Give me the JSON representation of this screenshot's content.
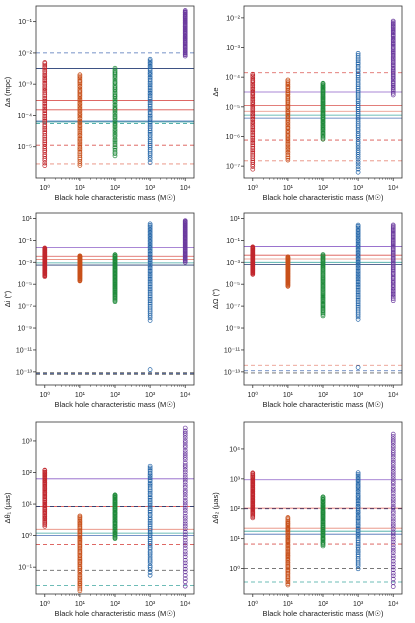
{
  "figure": {
    "panel_count": 6
  },
  "colors": {
    "m1": "#c1272d",
    "m10": "#c8511b",
    "m100": "#1f8a3a",
    "m1000": "#2566a8",
    "m10000": "#6b3a9e",
    "line_purple": "#8c5fc7",
    "line_red": "#d9534f",
    "line_salmon": "#e88a7a",
    "line_teal": "#3fa7a0",
    "line_blue": "#4a6fb5",
    "line_darkblue": "#233a72",
    "line_gray": "#666666"
  },
  "chart_data": [
    {
      "type": "scatter",
      "id": "delta-a",
      "ylabel": "Δa (mpc)",
      "xlabel": "Black hole characteristic mass (M☉)",
      "x_ticks": [
        "10⁰",
        "10¹",
        "10²",
        "10³",
        "10⁴"
      ],
      "y_ticks": [
        [
          "10⁻¹",
          -1
        ],
        [
          "10⁻²",
          -2
        ],
        [
          "10⁻³",
          -3
        ],
        [
          "10⁻⁴",
          -4
        ],
        [
          "10⁻⁵",
          -5
        ]
      ],
      "ylog_range": [
        -6.0,
        -0.5
      ],
      "xlog_range": [
        -0.25,
        4.25
      ],
      "columns": [
        {
          "mass": 1,
          "ylog_range": [
            -5.6,
            -2.3
          ],
          "color": "m1"
        },
        {
          "mass": 10,
          "ylog_range": [
            -5.6,
            -2.7
          ],
          "color": "m10"
        },
        {
          "mass": 100,
          "ylog_range": [
            -5.3,
            -2.5
          ],
          "color": "m100"
        },
        {
          "mass": 1000,
          "ylog_range": [
            -5.5,
            -2.2
          ],
          "color": "m1000"
        },
        {
          "mass": 10000,
          "ylog_range": [
            -2.1,
            -0.65
          ],
          "color": "m10000"
        }
      ],
      "hlines": [
        {
          "ylog": -2.0,
          "dash": true,
          "color": "line_blue"
        },
        {
          "ylog": -2.5,
          "dash": false,
          "color": "line_darkblue"
        },
        {
          "ylog": -3.52,
          "dash": false,
          "color": "line_red"
        },
        {
          "ylog": -3.82,
          "dash": false,
          "color": "line_red"
        },
        {
          "ylog": -4.18,
          "dash": false,
          "color": "line_blue"
        },
        {
          "ylog": -4.21,
          "dash": false,
          "color": "line_teal"
        },
        {
          "ylog": -4.26,
          "dash": true,
          "color": "line_teal"
        },
        {
          "ylog": -4.95,
          "dash": true,
          "color": "line_red"
        },
        {
          "ylog": -5.55,
          "dash": true,
          "color": "line_salmon"
        }
      ]
    },
    {
      "type": "scatter",
      "id": "delta-e",
      "ylabel": "Δe",
      "xlabel": "Black hole characteristic mass (M☉)",
      "x_ticks": [
        "10⁰",
        "10¹",
        "10²",
        "10³",
        "10⁴"
      ],
      "y_ticks": [
        [
          "10⁻²",
          -2
        ],
        [
          "10⁻³",
          -3
        ],
        [
          "10⁻⁴",
          -4
        ],
        [
          "10⁻⁵",
          -5
        ],
        [
          "10⁻⁶",
          -6
        ],
        [
          "10⁻⁷",
          -7
        ]
      ],
      "ylog_range": [
        -7.4,
        -1.6
      ],
      "xlog_range": [
        -0.25,
        4.25
      ],
      "columns": [
        {
          "mass": 1,
          "ylog_range": [
            -7.1,
            -3.9
          ],
          "color": "m1"
        },
        {
          "mass": 10,
          "ylog_range": [
            -6.8,
            -4.1
          ],
          "color": "m10"
        },
        {
          "mass": 100,
          "ylog_range": [
            -6.1,
            -4.2
          ],
          "color": "m100"
        },
        {
          "mass": 1000,
          "ylog_range": [
            -7.2,
            -3.2
          ],
          "color": "m1000"
        },
        {
          "mass": 10000,
          "ylog_range": [
            -4.6,
            -2.1
          ],
          "color": "m10000"
        }
      ],
      "hlines": [
        {
          "ylog": -3.85,
          "dash": true,
          "color": "line_red"
        },
        {
          "ylog": -4.5,
          "dash": false,
          "color": "line_purple"
        },
        {
          "ylog": -4.95,
          "dash": false,
          "color": "line_red"
        },
        {
          "ylog": -5.15,
          "dash": false,
          "color": "line_salmon"
        },
        {
          "ylog": -5.28,
          "dash": false,
          "color": "line_teal"
        },
        {
          "ylog": -5.38,
          "dash": false,
          "color": "line_blue"
        },
        {
          "ylog": -6.12,
          "dash": true,
          "color": "line_red"
        },
        {
          "ylog": -6.82,
          "dash": true,
          "color": "line_salmon"
        }
      ]
    },
    {
      "type": "scatter",
      "id": "delta-i",
      "ylabel": "Δi (″)",
      "xlabel": "Black hole characteristic mass (M☉)",
      "x_ticks": [
        "10⁰",
        "10¹",
        "10²",
        "10³",
        "10⁴"
      ],
      "y_ticks": [
        [
          "10¹",
          1
        ],
        [
          "10⁻¹",
          -1
        ],
        [
          "10⁻³",
          -3
        ],
        [
          "10⁻⁵",
          -5
        ],
        [
          "10⁻⁷",
          -7
        ],
        [
          "10⁻⁹",
          -9
        ],
        [
          "10⁻¹¹",
          -11
        ],
        [
          "10⁻¹³",
          -13
        ]
      ],
      "ylog_range": [
        -14.2,
        1.5
      ],
      "xlog_range": [
        -0.25,
        4.25
      ],
      "columns": [
        {
          "mass": 1,
          "ylog_range": [
            -4.3,
            -1.7
          ],
          "color": "m1"
        },
        {
          "mass": 10,
          "ylog_range": [
            -4.7,
            -2.4
          ],
          "color": "m10"
        },
        {
          "mass": 100,
          "ylog_range": [
            -6.6,
            -2.3
          ],
          "color": "m100"
        },
        {
          "mass": 1000,
          "ylog_range": [
            -8.3,
            0.5
          ],
          "color": "m1000"
        },
        {
          "mass": 10000,
          "ylog_range": [
            -3.0,
            0.8
          ],
          "color": "m10000"
        }
      ],
      "extra_points": [
        {
          "mass": 1000,
          "ylog": -12.8,
          "color": "m1000"
        }
      ],
      "hlines": [
        {
          "ylog": -1.65,
          "dash": false,
          "color": "line_purple"
        },
        {
          "ylog": -2.45,
          "dash": false,
          "color": "line_red"
        },
        {
          "ylog": -2.75,
          "dash": false,
          "color": "line_salmon"
        },
        {
          "ylog": -3.05,
          "dash": false,
          "color": "line_teal"
        },
        {
          "ylog": -3.25,
          "dash": false,
          "color": "line_darkblue"
        },
        {
          "ylog": -13.05,
          "dash": true,
          "color": "line_gray"
        },
        {
          "ylog": -13.15,
          "dash": true,
          "color": "line_darkblue"
        },
        {
          "ylog": -13.25,
          "dash": true,
          "color": "line_gray"
        }
      ]
    },
    {
      "type": "scatter",
      "id": "delta-omega",
      "ylabel": "ΔΩ (″)",
      "xlabel": "Black hole characteristic mass (M☉)",
      "x_ticks": [
        "10⁰",
        "10¹",
        "10²",
        "10³",
        "10⁴"
      ],
      "y_ticks": [
        [
          "10¹",
          1
        ],
        [
          "10⁻¹",
          -1
        ],
        [
          "10⁻³",
          -3
        ],
        [
          "10⁻⁵",
          -5
        ],
        [
          "10⁻⁷",
          -7
        ],
        [
          "10⁻⁹",
          -9
        ],
        [
          "10⁻¹¹",
          -11
        ],
        [
          "10⁻¹³",
          -13
        ]
      ],
      "ylog_range": [
        -14.2,
        1.5
      ],
      "xlog_range": [
        -0.25,
        4.25
      ],
      "columns": [
        {
          "mass": 1,
          "ylog_range": [
            -4.1,
            -1.6
          ],
          "color": "m1"
        },
        {
          "mass": 10,
          "ylog_range": [
            -5.2,
            -2.5
          ],
          "color": "m10"
        },
        {
          "mass": 100,
          "ylog_range": [
            -7.9,
            -2.3
          ],
          "color": "m100"
        },
        {
          "mass": 1000,
          "ylog_range": [
            -8.2,
            0.4
          ],
          "color": "m1000"
        },
        {
          "mass": 10000,
          "ylog_range": [
            -6.5,
            0.4
          ],
          "color": "m10000"
        }
      ],
      "extra_points": [
        {
          "mass": 1000,
          "ylog": -12.6,
          "color": "m1000"
        }
      ],
      "hlines": [
        {
          "ylog": -1.55,
          "dash": false,
          "color": "line_purple"
        },
        {
          "ylog": -2.35,
          "dash": false,
          "color": "line_red"
        },
        {
          "ylog": -2.7,
          "dash": false,
          "color": "line_salmon"
        },
        {
          "ylog": -3.0,
          "dash": false,
          "color": "line_teal"
        },
        {
          "ylog": -3.2,
          "dash": false,
          "color": "line_darkblue"
        },
        {
          "ylog": -12.4,
          "dash": true,
          "color": "line_salmon"
        },
        {
          "ylog": -12.9,
          "dash": true,
          "color": "line_blue"
        },
        {
          "ylog": -13.1,
          "dash": true,
          "color": "line_gray"
        }
      ]
    },
    {
      "type": "scatter",
      "id": "delta-theta-1",
      "ylabel": "Δθ₁ (µas)",
      "xlabel": "Black hole characteristic mass (M☉)",
      "x_ticks": [
        "10⁰",
        "10¹",
        "10²",
        "10³",
        "10⁴"
      ],
      "y_ticks": [
        [
          "10³",
          3
        ],
        [
          "10²",
          2
        ],
        [
          "10¹",
          1
        ],
        [
          "10⁰",
          0
        ],
        [
          "10⁻¹",
          -1
        ]
      ],
      "ylog_range": [
        -1.85,
        3.6
      ],
      "xlog_range": [
        -0.25,
        4.25
      ],
      "columns": [
        {
          "mass": 1,
          "ylog_range": [
            0.3,
            2.08
          ],
          "color": "m1"
        },
        {
          "mass": 10,
          "ylog_range": [
            -1.75,
            0.62
          ],
          "color": "m10"
        },
        {
          "mass": 100,
          "ylog_range": [
            -0.1,
            1.3
          ],
          "color": "m100"
        },
        {
          "mass": 1000,
          "ylog_range": [
            -1.25,
            2.2
          ],
          "color": "m1000"
        },
        {
          "mass": 10000,
          "ylog_range": [
            -1.6,
            3.4
          ],
          "color": "m10000"
        }
      ],
      "hlines": [
        {
          "ylog": 1.8,
          "dash": false,
          "color": "line_purple"
        },
        {
          "ylog": 0.92,
          "dash": false,
          "color": "line_red"
        },
        {
          "ylog": 0.92,
          "dash": true,
          "color": "line_darkblue"
        },
        {
          "ylog": 0.2,
          "dash": false,
          "color": "line_salmon"
        },
        {
          "ylog": 0.08,
          "dash": false,
          "color": "line_teal"
        },
        {
          "ylog": 0.0,
          "dash": false,
          "color": "line_blue"
        },
        {
          "ylog": -0.28,
          "dash": true,
          "color": "line_red"
        },
        {
          "ylog": -1.1,
          "dash": true,
          "color": "line_gray"
        },
        {
          "ylog": -1.58,
          "dash": true,
          "color": "line_teal"
        }
      ]
    },
    {
      "type": "scatter",
      "id": "delta-theta-2",
      "ylabel": "Δθ₂ (µas)",
      "xlabel": "Black hole characteristic mass (M☉)",
      "x_ticks": [
        "10⁰",
        "10¹",
        "10²",
        "10³",
        "10⁴"
      ],
      "y_ticks": [
        [
          "10⁴",
          4
        ],
        [
          "10³",
          3
        ],
        [
          "10²",
          2
        ],
        [
          "10¹",
          1
        ],
        [
          "10⁰",
          0
        ]
      ],
      "ylog_range": [
        -0.85,
        4.9
      ],
      "xlog_range": [
        -0.25,
        4.25
      ],
      "columns": [
        {
          "mass": 1,
          "ylog_range": [
            1.7,
            3.2
          ],
          "color": "m1"
        },
        {
          "mass": 10,
          "ylog_range": [
            -0.55,
            1.7
          ],
          "color": "m10"
        },
        {
          "mass": 100,
          "ylog_range": [
            0.75,
            2.4
          ],
          "color": "m100"
        },
        {
          "mass": 1000,
          "ylog_range": [
            0.0,
            3.2
          ],
          "color": "m1000"
        },
        {
          "mass": 10000,
          "ylog_range": [
            -0.6,
            4.5
          ],
          "color": "m10000"
        }
      ],
      "hlines": [
        {
          "ylog": 2.97,
          "dash": false,
          "color": "line_purple"
        },
        {
          "ylog": 2.02,
          "dash": false,
          "color": "line_red"
        },
        {
          "ylog": 2.0,
          "dash": true,
          "color": "line_darkblue"
        },
        {
          "ylog": 1.35,
          "dash": false,
          "color": "line_salmon"
        },
        {
          "ylog": 1.25,
          "dash": false,
          "color": "line_teal"
        },
        {
          "ylog": 1.15,
          "dash": false,
          "color": "line_blue"
        },
        {
          "ylog": 0.82,
          "dash": true,
          "color": "line_red"
        },
        {
          "ylog": 0.0,
          "dash": true,
          "color": "line_gray"
        },
        {
          "ylog": -0.45,
          "dash": true,
          "color": "line_teal"
        }
      ]
    }
  ]
}
